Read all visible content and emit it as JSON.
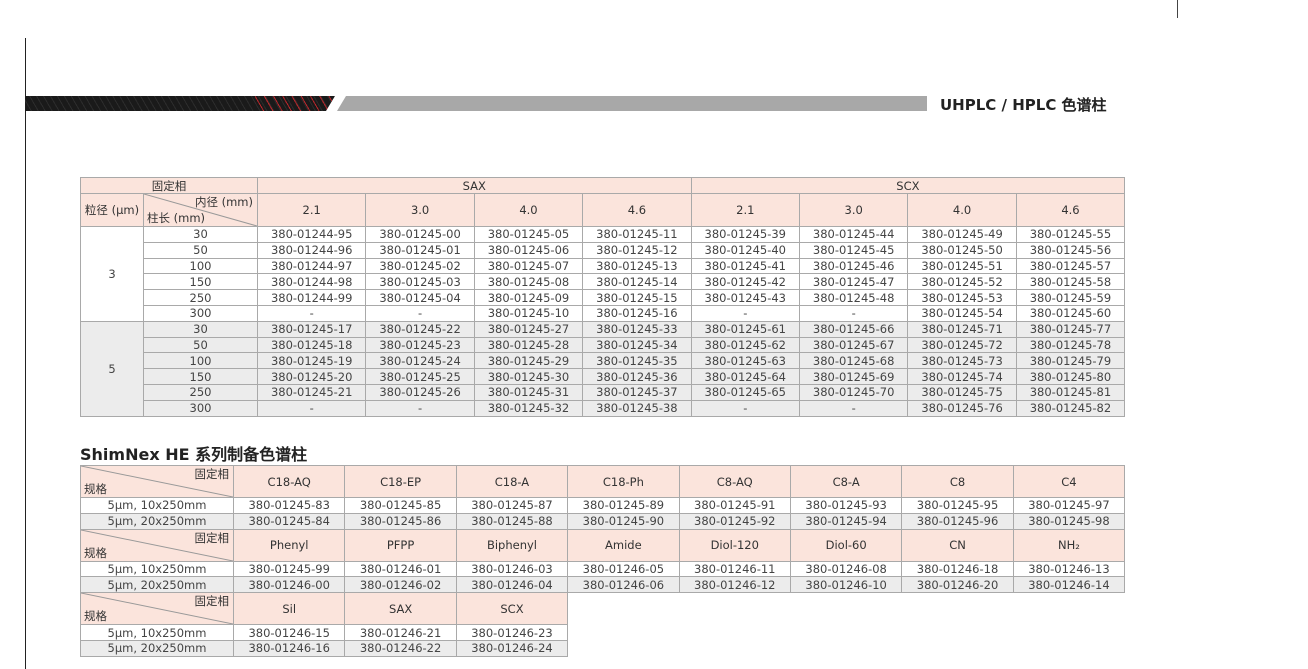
{
  "header": {
    "title": "UHPLC / HPLC 色谱柱"
  },
  "table1": {
    "stationary_phase_label": "固定相",
    "particle_label": "粒径 (µm)",
    "id_label": "内径 (mm)",
    "length_label": "柱长 (mm)",
    "groups": [
      "SAX",
      "SCX"
    ],
    "diameters": [
      "2.1",
      "3.0",
      "4.0",
      "4.6",
      "2.1",
      "3.0",
      "4.0",
      "4.6"
    ],
    "blocks": [
      {
        "particle": "3",
        "rows": [
          {
            "length": "30",
            "cells": [
              "380-01244-95",
              "380-01245-00",
              "380-01245-05",
              "380-01245-11",
              "380-01245-39",
              "380-01245-44",
              "380-01245-49",
              "380-01245-55"
            ]
          },
          {
            "length": "50",
            "cells": [
              "380-01244-96",
              "380-01245-01",
              "380-01245-06",
              "380-01245-12",
              "380-01245-40",
              "380-01245-45",
              "380-01245-50",
              "380-01245-56"
            ]
          },
          {
            "length": "100",
            "cells": [
              "380-01244-97",
              "380-01245-02",
              "380-01245-07",
              "380-01245-13",
              "380-01245-41",
              "380-01245-46",
              "380-01245-51",
              "380-01245-57"
            ]
          },
          {
            "length": "150",
            "cells": [
              "380-01244-98",
              "380-01245-03",
              "380-01245-08",
              "380-01245-14",
              "380-01245-42",
              "380-01245-47",
              "380-01245-52",
              "380-01245-58"
            ]
          },
          {
            "length": "250",
            "cells": [
              "380-01244-99",
              "380-01245-04",
              "380-01245-09",
              "380-01245-15",
              "380-01245-43",
              "380-01245-48",
              "380-01245-53",
              "380-01245-59"
            ]
          },
          {
            "length": "300",
            "cells": [
              "-",
              "-",
              "380-01245-10",
              "380-01245-16",
              "-",
              "-",
              "380-01245-54",
              "380-01245-60"
            ]
          }
        ]
      },
      {
        "particle": "5",
        "rows": [
          {
            "length": "30",
            "cells": [
              "380-01245-17",
              "380-01245-22",
              "380-01245-27",
              "380-01245-33",
              "380-01245-61",
              "380-01245-66",
              "380-01245-71",
              "380-01245-77"
            ]
          },
          {
            "length": "50",
            "cells": [
              "380-01245-18",
              "380-01245-23",
              "380-01245-28",
              "380-01245-34",
              "380-01245-62",
              "380-01245-67",
              "380-01245-72",
              "380-01245-78"
            ]
          },
          {
            "length": "100",
            "cells": [
              "380-01245-19",
              "380-01245-24",
              "380-01245-29",
              "380-01245-35",
              "380-01245-63",
              "380-01245-68",
              "380-01245-73",
              "380-01245-79"
            ]
          },
          {
            "length": "150",
            "cells": [
              "380-01245-20",
              "380-01245-25",
              "380-01245-30",
              "380-01245-36",
              "380-01245-64",
              "380-01245-69",
              "380-01245-74",
              "380-01245-80"
            ]
          },
          {
            "length": "250",
            "cells": [
              "380-01245-21",
              "380-01245-26",
              "380-01245-31",
              "380-01245-37",
              "380-01245-65",
              "380-01245-70",
              "380-01245-75",
              "380-01245-81"
            ]
          },
          {
            "length": "300",
            "cells": [
              "-",
              "-",
              "380-01245-32",
              "380-01245-38",
              "-",
              "-",
              "380-01245-76",
              "380-01245-82"
            ]
          }
        ]
      }
    ]
  },
  "table2": {
    "title": "ShimNex HE 系列制备色谱柱",
    "phase_label": "固定相",
    "spec_label": "规格",
    "blocks": [
      {
        "phases": [
          "C18-AQ",
          "C18-EP",
          "C18-A",
          "C18-Ph",
          "C8-AQ",
          "C8-A",
          "C8",
          "C4"
        ],
        "rows": [
          {
            "spec": "5µm, 10x250mm",
            "cells": [
              "380-01245-83",
              "380-01245-85",
              "380-01245-87",
              "380-01245-89",
              "380-01245-91",
              "380-01245-93",
              "380-01245-95",
              "380-01245-97"
            ]
          },
          {
            "spec": "5µm, 20x250mm",
            "cells": [
              "380-01245-84",
              "380-01245-86",
              "380-01245-88",
              "380-01245-90",
              "380-01245-92",
              "380-01245-94",
              "380-01245-96",
              "380-01245-98"
            ]
          }
        ]
      },
      {
        "phases": [
          "Phenyl",
          "PFPP",
          "Biphenyl",
          "Amide",
          "Diol-120",
          "Diol-60",
          "CN",
          "NH₂"
        ],
        "rows": [
          {
            "spec": "5µm, 10x250mm",
            "cells": [
              "380-01245-99",
              "380-01246-01",
              "380-01246-03",
              "380-01246-05",
              "380-01246-11",
              "380-01246-08",
              "380-01246-18",
              "380-01246-13"
            ]
          },
          {
            "spec": "5µm, 20x250mm",
            "cells": [
              "380-01246-00",
              "380-01246-02",
              "380-01246-04",
              "380-01246-06",
              "380-01246-12",
              "380-01246-10",
              "380-01246-20",
              "380-01246-14"
            ]
          }
        ]
      },
      {
        "phases": [
          "Sil",
          "SAX",
          "SCX"
        ],
        "rows": [
          {
            "spec": "5µm, 10x250mm",
            "cells": [
              "380-01246-15",
              "380-01246-21",
              "380-01246-23"
            ]
          },
          {
            "spec": "5µm, 20x250mm",
            "cells": [
              "380-01246-16",
              "380-01246-22",
              "380-01246-24"
            ]
          }
        ]
      }
    ]
  },
  "colors": {
    "header_bg": "#fbe4dc",
    "alt_row": "#ececec",
    "accent_red": "#b8262b",
    "banner_grey": "#a8a8a8"
  }
}
